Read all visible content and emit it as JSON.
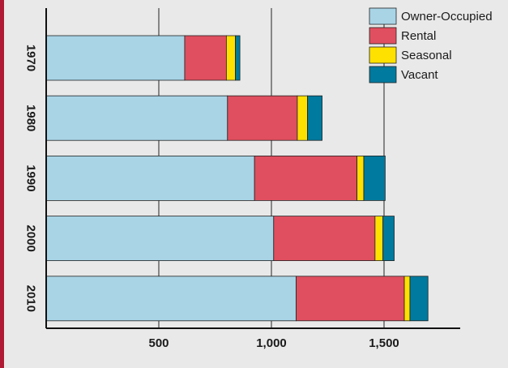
{
  "chart_data": {
    "type": "bar",
    "orientation": "horizontal",
    "stacked": true,
    "categories": [
      "1970",
      "1980",
      "1990",
      "2000",
      "2010"
    ],
    "series": [
      {
        "name": "Owner-Occupied",
        "color": "#a8d4e6",
        "values": [
          615,
          805,
          925,
          1010,
          1110
        ]
      },
      {
        "name": "Rental",
        "color": "#e04f5f",
        "values": [
          185,
          310,
          455,
          450,
          480
        ]
      },
      {
        "name": "Seasonal",
        "color": "#ffe100",
        "values": [
          40,
          45,
          30,
          35,
          25
        ]
      },
      {
        "name": "Vacant",
        "color": "#007a9e",
        "values": [
          20,
          65,
          95,
          50,
          80
        ]
      }
    ],
    "xticks": [
      500,
      1000,
      1500
    ],
    "xtick_labels": [
      "500",
      "1,000",
      "1,500"
    ],
    "xlim": [
      0,
      1770
    ],
    "grid": "vertical",
    "legend": "top-right",
    "title": "",
    "xlabel": "",
    "ylabel": ""
  }
}
